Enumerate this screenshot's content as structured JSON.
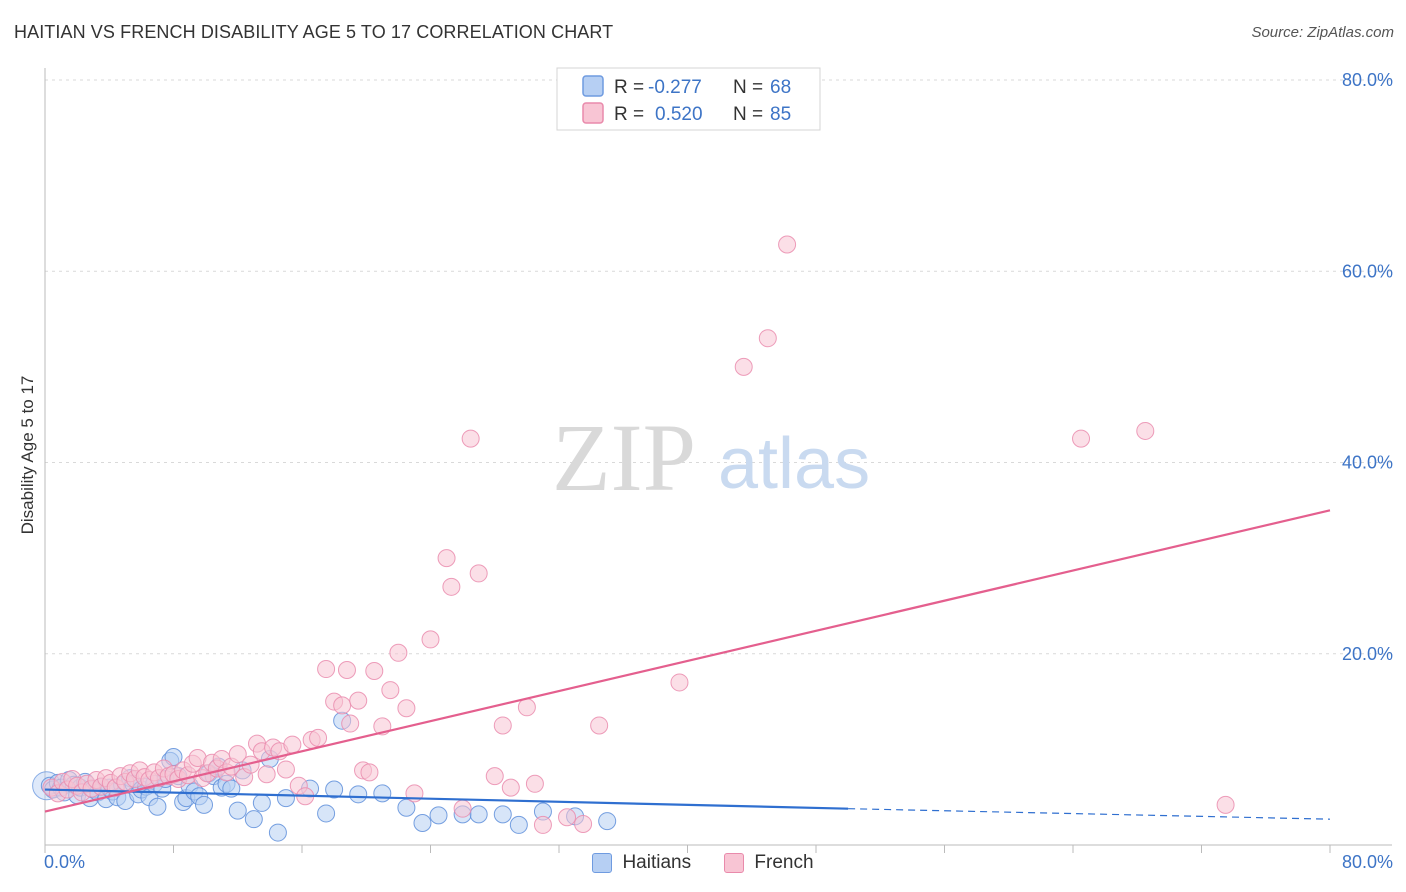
{
  "title": "HAITIAN VS FRENCH DISABILITY AGE 5 TO 17 CORRELATION CHART",
  "source": "Source: ZipAtlas.com",
  "colors": {
    "blue": "#3d74c6",
    "blue_fill": "#b6cff3",
    "pink": "#e45f8e",
    "pink_fill": "#f8c5d4",
    "grid": "#d9d9d9"
  },
  "stats": {
    "haitians": {
      "r_label": "R =",
      "r_value": "-0.277",
      "n_label": "N =",
      "n_value": "68"
    },
    "french": {
      "r_label": "R =",
      "r_value": "0.520",
      "n_label": "N =",
      "n_value": "85"
    }
  },
  "watermark": {
    "zip": "ZIP",
    "atlas": "atlas"
  },
  "legend": {
    "haitians": "Haitians",
    "french": "French"
  },
  "chart_data": {
    "type": "scatter",
    "title": "HAITIAN VS FRENCH DISABILITY AGE 5 TO 17 CORRELATION CHART",
    "xlabel": "",
    "ylabel": "Disability Age 5 to 17",
    "xlim": [
      0,
      80
    ],
    "ylim": [
      0,
      80
    ],
    "x_tick_labels": [
      "0.0%",
      "80.0%"
    ],
    "y_ticks": [
      20,
      40,
      60,
      80
    ],
    "y_tick_labels": [
      "20.0%",
      "40.0%",
      "60.0%",
      "80.0%"
    ],
    "grid": true,
    "series": [
      {
        "name": "Haitians",
        "r": -0.277,
        "n": 68,
        "trend": {
          "x1": 0,
          "y1": 5.8,
          "x2": 50,
          "y2": 3.8,
          "x_end": 80,
          "y_end": 2.7
        },
        "points": [
          [
            0.3,
            6.2
          ],
          [
            0.5,
            5.8
          ],
          [
            0.8,
            6.5
          ],
          [
            1.0,
            6.0
          ],
          [
            1.2,
            5.5
          ],
          [
            1.5,
            6.8
          ],
          [
            1.8,
            6.3
          ],
          [
            2.0,
            5.2
          ],
          [
            2.2,
            6.0
          ],
          [
            2.5,
            6.6
          ],
          [
            2.8,
            4.9
          ],
          [
            3.0,
            5.8
          ],
          [
            3.3,
            5.5
          ],
          [
            3.5,
            6.1
          ],
          [
            3.8,
            4.8
          ],
          [
            4.0,
            6.0
          ],
          [
            4.2,
            5.6
          ],
          [
            4.5,
            5.0
          ],
          [
            4.8,
            6.3
          ],
          [
            5.0,
            4.6
          ],
          [
            5.3,
            7.0
          ],
          [
            5.5,
            6.4
          ],
          [
            5.8,
            5.3
          ],
          [
            6.0,
            5.8
          ],
          [
            6.3,
            6.1
          ],
          [
            6.5,
            5.0
          ],
          [
            6.8,
            6.4
          ],
          [
            7.0,
            4.0
          ],
          [
            7.3,
            5.9
          ],
          [
            7.5,
            6.9
          ],
          [
            7.8,
            8.8
          ],
          [
            8.0,
            9.2
          ],
          [
            8.3,
            7.2
          ],
          [
            8.6,
            4.5
          ],
          [
            8.8,
            4.9
          ],
          [
            9.0,
            6.2
          ],
          [
            9.3,
            5.6
          ],
          [
            9.6,
            5.1
          ],
          [
            9.9,
            4.2
          ],
          [
            10.2,
            7.5
          ],
          [
            10.5,
            7.2
          ],
          [
            10.8,
            8.2
          ],
          [
            11.0,
            6.0
          ],
          [
            11.3,
            6.4
          ],
          [
            11.6,
            5.9
          ],
          [
            12.0,
            3.6
          ],
          [
            12.3,
            7.8
          ],
          [
            13.0,
            2.7
          ],
          [
            13.5,
            4.4
          ],
          [
            14.0,
            9.0
          ],
          [
            14.5,
            1.3
          ],
          [
            15.0,
            4.9
          ],
          [
            16.5,
            5.9
          ],
          [
            17.5,
            3.3
          ],
          [
            18.0,
            5.8
          ],
          [
            18.5,
            13.0
          ],
          [
            19.5,
            5.3
          ],
          [
            21.0,
            5.4
          ],
          [
            22.5,
            3.9
          ],
          [
            23.5,
            2.3
          ],
          [
            24.5,
            3.1
          ],
          [
            26.0,
            3.2
          ],
          [
            27.0,
            3.2
          ],
          [
            28.5,
            3.2
          ],
          [
            29.5,
            2.1
          ],
          [
            31.0,
            3.5
          ],
          [
            33.0,
            3.0
          ],
          [
            35.0,
            2.5
          ]
        ]
      },
      {
        "name": "French",
        "r": 0.52,
        "n": 85,
        "trend": {
          "x1": 0,
          "y1": 3.5,
          "x2": 80,
          "y2": 35.0
        },
        "points": [
          [
            0.4,
            6.0
          ],
          [
            0.8,
            5.4
          ],
          [
            1.1,
            6.6
          ],
          [
            1.4,
            5.8
          ],
          [
            1.7,
            6.9
          ],
          [
            2.0,
            6.2
          ],
          [
            2.3,
            5.5
          ],
          [
            2.6,
            6.4
          ],
          [
            2.9,
            5.9
          ],
          [
            3.2,
            6.8
          ],
          [
            3.5,
            6.1
          ],
          [
            3.8,
            7.0
          ],
          [
            4.1,
            6.5
          ],
          [
            4.4,
            6.0
          ],
          [
            4.7,
            7.2
          ],
          [
            5.0,
            6.6
          ],
          [
            5.3,
            7.5
          ],
          [
            5.6,
            6.9
          ],
          [
            5.9,
            7.8
          ],
          [
            6.2,
            7.1
          ],
          [
            6.5,
            6.8
          ],
          [
            6.8,
            7.6
          ],
          [
            7.1,
            7.0
          ],
          [
            7.4,
            8.0
          ],
          [
            7.7,
            7.2
          ],
          [
            8.0,
            7.4
          ],
          [
            8.3,
            6.9
          ],
          [
            8.6,
            7.8
          ],
          [
            8.9,
            7.3
          ],
          [
            9.2,
            8.5
          ],
          [
            9.5,
            9.1
          ],
          [
            9.8,
            7.0
          ],
          [
            10.1,
            7.5
          ],
          [
            10.4,
            8.6
          ],
          [
            10.7,
            8.0
          ],
          [
            11.0,
            9.0
          ],
          [
            11.3,
            7.6
          ],
          [
            11.6,
            8.2
          ],
          [
            12.0,
            9.5
          ],
          [
            12.4,
            7.1
          ],
          [
            12.8,
            8.4
          ],
          [
            13.2,
            10.6
          ],
          [
            13.5,
            9.8
          ],
          [
            13.8,
            7.4
          ],
          [
            14.2,
            10.2
          ],
          [
            14.6,
            9.8
          ],
          [
            15.0,
            7.9
          ],
          [
            15.4,
            10.5
          ],
          [
            15.8,
            6.2
          ],
          [
            16.2,
            5.1
          ],
          [
            16.6,
            11.0
          ],
          [
            17.0,
            11.2
          ],
          [
            17.5,
            18.4
          ],
          [
            18.0,
            15.0
          ],
          [
            18.5,
            14.6
          ],
          [
            18.8,
            18.3
          ],
          [
            19.0,
            12.7
          ],
          [
            19.5,
            15.1
          ],
          [
            19.8,
            7.8
          ],
          [
            20.2,
            7.6
          ],
          [
            20.5,
            18.2
          ],
          [
            21.0,
            12.4
          ],
          [
            21.5,
            16.2
          ],
          [
            22.0,
            20.1
          ],
          [
            22.5,
            14.3
          ],
          [
            23.0,
            5.4
          ],
          [
            24.0,
            21.5
          ],
          [
            25.0,
            30.0
          ],
          [
            25.3,
            27.0
          ],
          [
            26.0,
            3.8
          ],
          [
            26.5,
            42.5
          ],
          [
            27.0,
            28.4
          ],
          [
            28.0,
            7.2
          ],
          [
            28.5,
            12.5
          ],
          [
            29.0,
            6.0
          ],
          [
            30.0,
            14.4
          ],
          [
            30.5,
            6.4
          ],
          [
            31.0,
            2.1
          ],
          [
            32.5,
            2.9
          ],
          [
            33.5,
            2.2
          ],
          [
            34.5,
            12.5
          ],
          [
            39.5,
            17.0
          ],
          [
            43.5,
            50.0
          ],
          [
            45.0,
            53.0
          ],
          [
            46.2,
            62.8
          ]
        ],
        "outliers_far": [
          [
            64.5,
            42.5
          ],
          [
            68.5,
            43.3
          ],
          [
            73.5,
            4.2
          ]
        ]
      }
    ]
  }
}
